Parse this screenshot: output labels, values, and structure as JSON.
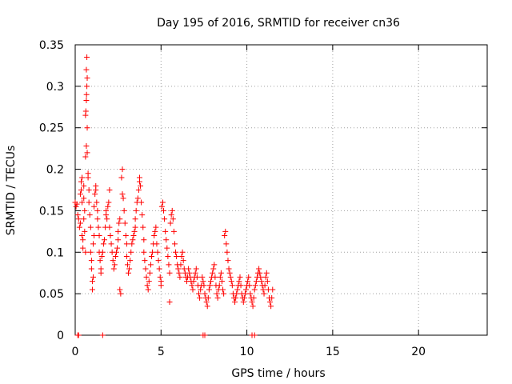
{
  "chart_data": {
    "type": "scatter",
    "title": "Day 195 of 2016, SRMTID for receiver cn36",
    "xlabel": "GPS time / hours",
    "ylabel": "SRMTID / TECUs",
    "xlim": [
      0,
      24
    ],
    "ylim": [
      0,
      0.35
    ],
    "x_ticks": [
      0,
      5,
      10,
      15,
      20
    ],
    "x_tick_labels": [
      "0",
      "5",
      "10",
      "15",
      "20"
    ],
    "y_ticks": [
      0,
      0.05,
      0.1,
      0.15,
      0.2,
      0.25,
      0.3,
      0.35
    ],
    "y_tick_labels": [
      "0",
      "0.05",
      "0.1",
      "0.15",
      "0.2",
      "0.25",
      "0.3",
      "0.35"
    ],
    "grid": true,
    "marker": "+",
    "series": [
      {
        "name": "SRMTID",
        "color": "#ff0000",
        "points": [
          [
            0.0,
            0.16
          ],
          [
            0.05,
            0.155
          ],
          [
            0.1,
            0.158
          ],
          [
            0.15,
            0.145
          ],
          [
            0.2,
            0.14
          ],
          [
            0.25,
            0.13
          ],
          [
            0.3,
            0.135
          ],
          [
            0.3,
            0.17
          ],
          [
            0.35,
            0.175
          ],
          [
            0.35,
            0.185
          ],
          [
            0.4,
            0.19
          ],
          [
            0.4,
            0.16
          ],
          [
            0.4,
            0.12
          ],
          [
            0.45,
            0.115
          ],
          [
            0.45,
            0.105
          ],
          [
            0.5,
            0.18
          ],
          [
            0.5,
            0.165
          ],
          [
            0.5,
            0.14
          ],
          [
            0.55,
            0.15
          ],
          [
            0.55,
            0.125
          ],
          [
            0.6,
            0.1
          ],
          [
            0.6,
            0.215
          ],
          [
            0.65,
            0.228
          ],
          [
            0.7,
            0.22
          ],
          [
            0.6,
            0.265
          ],
          [
            0.62,
            0.27
          ],
          [
            0.65,
            0.283
          ],
          [
            0.66,
            0.29
          ],
          [
            0.68,
            0.3
          ],
          [
            0.7,
            0.31
          ],
          [
            0.65,
            0.32
          ],
          [
            0.68,
            0.335
          ],
          [
            0.7,
            0.25
          ],
          [
            0.75,
            0.195
          ],
          [
            0.75,
            0.19
          ],
          [
            0.8,
            0.175
          ],
          [
            0.8,
            0.16
          ],
          [
            0.85,
            0.145
          ],
          [
            0.9,
            0.13
          ],
          [
            0.9,
            0.1
          ],
          [
            0.95,
            0.09
          ],
          [
            0.95,
            0.08
          ],
          [
            1.0,
            0.065
          ],
          [
            1.0,
            0.055
          ],
          [
            1.05,
            0.07
          ],
          [
            1.05,
            0.11
          ],
          [
            1.1,
            0.12
          ],
          [
            1.1,
            0.155
          ],
          [
            1.15,
            0.17
          ],
          [
            1.2,
            0.18
          ],
          [
            1.2,
            0.175
          ],
          [
            1.25,
            0.16
          ],
          [
            1.3,
            0.15
          ],
          [
            1.3,
            0.14
          ],
          [
            1.35,
            0.13
          ],
          [
            1.4,
            0.12
          ],
          [
            1.4,
            0.1
          ],
          [
            1.45,
            0.09
          ],
          [
            1.5,
            0.08
          ],
          [
            1.5,
            0.075
          ],
          [
            1.55,
            0.095
          ],
          [
            1.6,
            0.1
          ],
          [
            1.65,
            0.11
          ],
          [
            1.7,
            0.115
          ],
          [
            1.75,
            0.13
          ],
          [
            1.8,
            0.145
          ],
          [
            1.8,
            0.15
          ],
          [
            1.85,
            0.14
          ],
          [
            1.9,
            0.155
          ],
          [
            1.95,
            0.16
          ],
          [
            2.0,
            0.175
          ],
          [
            2.0,
            0.13
          ],
          [
            2.05,
            0.12
          ],
          [
            2.1,
            0.11
          ],
          [
            2.15,
            0.1
          ],
          [
            2.2,
            0.09
          ],
          [
            2.25,
            0.08
          ],
          [
            2.3,
            0.085
          ],
          [
            2.35,
            0.095
          ],
          [
            2.4,
            0.1
          ],
          [
            2.45,
            0.105
          ],
          [
            2.5,
            0.115
          ],
          [
            2.5,
            0.125
          ],
          [
            2.55,
            0.135
          ],
          [
            2.6,
            0.14
          ],
          [
            2.6,
            0.055
          ],
          [
            2.65,
            0.05
          ],
          [
            2.7,
            0.19
          ],
          [
            2.75,
            0.2
          ],
          [
            2.75,
            0.17
          ],
          [
            2.8,
            0.165
          ],
          [
            2.85,
            0.15
          ],
          [
            2.9,
            0.135
          ],
          [
            2.95,
            0.12
          ],
          [
            3.0,
            0.11
          ],
          [
            3.0,
            0.095
          ],
          [
            3.05,
            0.085
          ],
          [
            3.1,
            0.075
          ],
          [
            3.15,
            0.08
          ],
          [
            3.2,
            0.09
          ],
          [
            3.25,
            0.1
          ],
          [
            3.3,
            0.11
          ],
          [
            3.35,
            0.115
          ],
          [
            3.4,
            0.12
          ],
          [
            3.45,
            0.125
          ],
          [
            3.5,
            0.13
          ],
          [
            3.5,
            0.14
          ],
          [
            3.55,
            0.15
          ],
          [
            3.6,
            0.16
          ],
          [
            3.65,
            0.165
          ],
          [
            3.7,
            0.175
          ],
          [
            3.75,
            0.185
          ],
          [
            3.75,
            0.19
          ],
          [
            3.8,
            0.18
          ],
          [
            3.85,
            0.16
          ],
          [
            3.9,
            0.145
          ],
          [
            3.95,
            0.13
          ],
          [
            4.0,
            0.115
          ],
          [
            4.0,
            0.1
          ],
          [
            4.05,
            0.09
          ],
          [
            4.1,
            0.08
          ],
          [
            4.15,
            0.07
          ],
          [
            4.2,
            0.06
          ],
          [
            4.25,
            0.055
          ],
          [
            4.3,
            0.065
          ],
          [
            4.35,
            0.075
          ],
          [
            4.4,
            0.085
          ],
          [
            4.45,
            0.095
          ],
          [
            4.5,
            0.1
          ],
          [
            4.55,
            0.11
          ],
          [
            4.6,
            0.12
          ],
          [
            4.65,
            0.125
          ],
          [
            4.7,
            0.13
          ],
          [
            4.75,
            0.11
          ],
          [
            4.8,
            0.1
          ],
          [
            4.85,
            0.09
          ],
          [
            4.9,
            0.08
          ],
          [
            4.95,
            0.07
          ],
          [
            5.0,
            0.065
          ],
          [
            5.0,
            0.06
          ],
          [
            5.05,
            0.155
          ],
          [
            5.1,
            0.16
          ],
          [
            5.15,
            0.15
          ],
          [
            5.2,
            0.14
          ],
          [
            5.25,
            0.125
          ],
          [
            5.3,
            0.115
          ],
          [
            5.35,
            0.105
          ],
          [
            5.4,
            0.095
          ],
          [
            5.45,
            0.085
          ],
          [
            5.5,
            0.075
          ],
          [
            5.5,
            0.04
          ],
          [
            5.55,
            0.135
          ],
          [
            5.6,
            0.145
          ],
          [
            5.65,
            0.15
          ],
          [
            5.7,
            0.14
          ],
          [
            5.75,
            0.125
          ],
          [
            5.8,
            0.11
          ],
          [
            5.85,
            0.1
          ],
          [
            5.9,
            0.095
          ],
          [
            5.95,
            0.085
          ],
          [
            6.0,
            0.08
          ],
          [
            6.05,
            0.075
          ],
          [
            6.1,
            0.07
          ],
          [
            6.15,
            0.085
          ],
          [
            6.2,
            0.095
          ],
          [
            6.25,
            0.1
          ],
          [
            6.3,
            0.09
          ],
          [
            6.35,
            0.08
          ],
          [
            6.4,
            0.075
          ],
          [
            6.45,
            0.07
          ],
          [
            6.5,
            0.065
          ],
          [
            6.55,
            0.07
          ],
          [
            6.6,
            0.08
          ],
          [
            6.65,
            0.075
          ],
          [
            6.7,
            0.07
          ],
          [
            6.75,
            0.065
          ],
          [
            6.8,
            0.06
          ],
          [
            6.85,
            0.055
          ],
          [
            6.9,
            0.065
          ],
          [
            6.95,
            0.07
          ],
          [
            7.0,
            0.075
          ],
          [
            7.05,
            0.08
          ],
          [
            7.1,
            0.07
          ],
          [
            7.15,
            0.06
          ],
          [
            7.2,
            0.05
          ],
          [
            7.25,
            0.045
          ],
          [
            7.3,
            0.055
          ],
          [
            7.35,
            0.06
          ],
          [
            7.4,
            0.07
          ],
          [
            7.45,
            0.065
          ],
          [
            7.5,
            0.06
          ],
          [
            7.55,
            0.05
          ],
          [
            7.6,
            0.045
          ],
          [
            7.65,
            0.04
          ],
          [
            7.7,
            0.035
          ],
          [
            7.75,
            0.045
          ],
          [
            7.8,
            0.055
          ],
          [
            7.85,
            0.06
          ],
          [
            7.9,
            0.065
          ],
          [
            7.95,
            0.07
          ],
          [
            8.0,
            0.075
          ],
          [
            8.05,
            0.08
          ],
          [
            8.1,
            0.085
          ],
          [
            8.15,
            0.07
          ],
          [
            8.2,
            0.06
          ],
          [
            8.25,
            0.05
          ],
          [
            8.3,
            0.045
          ],
          [
            8.35,
            0.055
          ],
          [
            8.4,
            0.06
          ],
          [
            8.45,
            0.07
          ],
          [
            8.5,
            0.075
          ],
          [
            8.55,
            0.065
          ],
          [
            8.6,
            0.055
          ],
          [
            8.65,
            0.05
          ],
          [
            8.7,
            0.12
          ],
          [
            8.75,
            0.125
          ],
          [
            8.8,
            0.11
          ],
          [
            8.85,
            0.1
          ],
          [
            8.9,
            0.09
          ],
          [
            8.95,
            0.08
          ],
          [
            9.0,
            0.075
          ],
          [
            9.05,
            0.07
          ],
          [
            9.1,
            0.065
          ],
          [
            9.15,
            0.06
          ],
          [
            9.2,
            0.05
          ],
          [
            9.25,
            0.045
          ],
          [
            9.3,
            0.04
          ],
          [
            9.35,
            0.045
          ],
          [
            9.4,
            0.05
          ],
          [
            9.45,
            0.055
          ],
          [
            9.5,
            0.06
          ],
          [
            9.55,
            0.065
          ],
          [
            9.6,
            0.07
          ],
          [
            9.65,
            0.06
          ],
          [
            9.7,
            0.05
          ],
          [
            9.75,
            0.045
          ],
          [
            9.8,
            0.04
          ],
          [
            9.85,
            0.045
          ],
          [
            9.9,
            0.05
          ],
          [
            9.95,
            0.055
          ],
          [
            10.0,
            0.06
          ],
          [
            10.05,
            0.065
          ],
          [
            10.1,
            0.07
          ],
          [
            10.15,
            0.06
          ],
          [
            10.2,
            0.05
          ],
          [
            10.25,
            0.045
          ],
          [
            10.3,
            0.04
          ],
          [
            10.35,
            0.035
          ],
          [
            10.4,
            0.045
          ],
          [
            10.45,
            0.055
          ],
          [
            10.5,
            0.06
          ],
          [
            10.55,
            0.065
          ],
          [
            10.6,
            0.07
          ],
          [
            10.65,
            0.075
          ],
          [
            10.7,
            0.08
          ],
          [
            10.75,
            0.075
          ],
          [
            10.8,
            0.07
          ],
          [
            10.85,
            0.065
          ],
          [
            10.9,
            0.06
          ],
          [
            10.95,
            0.055
          ],
          [
            11.0,
            0.05
          ],
          [
            11.05,
            0.06
          ],
          [
            11.1,
            0.07
          ],
          [
            11.15,
            0.075
          ],
          [
            11.2,
            0.065
          ],
          [
            11.25,
            0.055
          ],
          [
            11.3,
            0.045
          ],
          [
            11.35,
            0.04
          ],
          [
            11.4,
            0.035
          ],
          [
            11.45,
            0.045
          ],
          [
            11.5,
            0.055
          ],
          [
            0.15,
            0.0
          ],
          [
            0.2,
            0.0
          ],
          [
            1.6,
            0.0
          ],
          [
            7.45,
            0.0
          ],
          [
            7.55,
            0.0
          ],
          [
            10.3,
            0.0
          ],
          [
            10.45,
            0.0
          ]
        ]
      }
    ]
  }
}
